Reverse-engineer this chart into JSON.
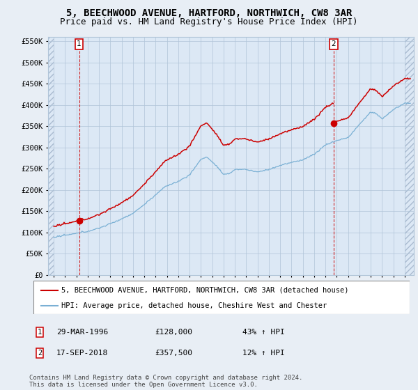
{
  "title": "5, BEECHWOOD AVENUE, HARTFORD, NORTHWICH, CW8 3AR",
  "subtitle": "Price paid vs. HM Land Registry's House Price Index (HPI)",
  "ylim": [
    0,
    560000
  ],
  "yticks": [
    0,
    50000,
    100000,
    150000,
    200000,
    250000,
    300000,
    350000,
    400000,
    450000,
    500000,
    550000
  ],
  "ytick_labels": [
    "£0",
    "£50K",
    "£100K",
    "£150K",
    "£200K",
    "£250K",
    "£300K",
    "£350K",
    "£400K",
    "£450K",
    "£500K",
    "£550K"
  ],
  "sale1_date": "29-MAR-1996",
  "sale1_price": 128000,
  "sale1_pct": "43%",
  "sale2_date": "17-SEP-2018",
  "sale2_price": 357500,
  "sale2_pct": "12%",
  "sale1_x": 1996.24,
  "sale2_x": 2018.72,
  "house_color": "#cc0000",
  "hpi_color": "#7ab0d4",
  "vline_color": "#cc0000",
  "legend_house": "5, BEECHWOOD AVENUE, HARTFORD, NORTHWICH, CW8 3AR (detached house)",
  "legend_hpi": "HPI: Average price, detached house, Cheshire West and Chester",
  "footer": "Contains HM Land Registry data © Crown copyright and database right 2024.\nThis data is licensed under the Open Government Licence v3.0.",
  "bg_color": "#e8eef5",
  "plot_bg_color": "#dce8f5",
  "plot_inner_color": "#ffffff",
  "grid_color": "#b0c4d8",
  "title_fontsize": 10,
  "subtitle_fontsize": 9,
  "tick_fontsize": 7.5,
  "legend_fontsize": 7.5,
  "footer_fontsize": 6.5,
  "xlim_start": 1993.5,
  "xlim_end": 2025.8
}
